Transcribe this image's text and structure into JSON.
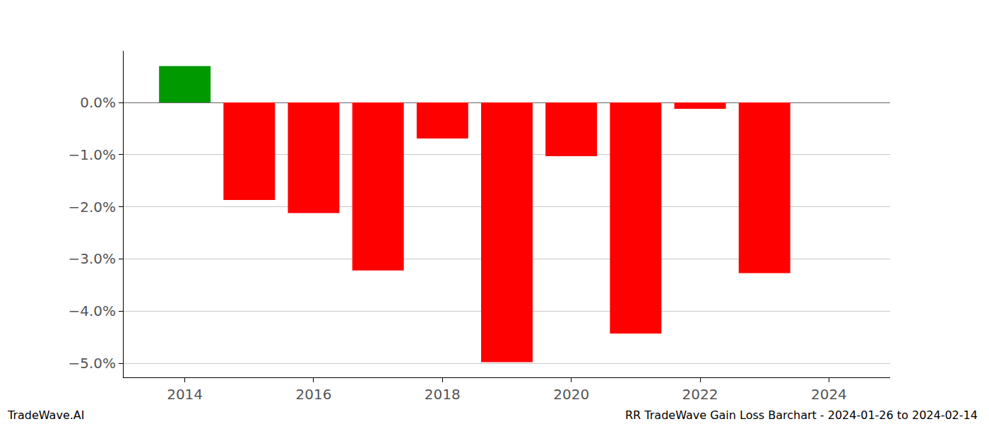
{
  "chart_data": {
    "type": "bar",
    "x": [
      2014,
      2015,
      2016,
      2017,
      2018,
      2019,
      2020,
      2021,
      2022,
      2023
    ],
    "values": [
      0.7,
      -1.87,
      -2.12,
      -3.22,
      -0.69,
      -4.98,
      -1.03,
      -4.43,
      -0.12,
      -3.27
    ],
    "colors": [
      "#009900",
      "#ff0000",
      "#ff0000",
      "#ff0000",
      "#ff0000",
      "#ff0000",
      "#ff0000",
      "#ff0000",
      "#ff0000",
      "#ff0000"
    ],
    "xlim": [
      2013.05,
      2024.95
    ],
    "xticks": [
      2014,
      2016,
      2018,
      2020,
      2022,
      2024
    ],
    "ylim": [
      -5.27,
      0.99
    ],
    "yticks": [
      {
        "value": 0,
        "label": "0.0%"
      },
      {
        "value": -1,
        "label": "−1.0%"
      },
      {
        "value": -2,
        "label": "−2.0%"
      },
      {
        "value": -3,
        "label": "−3.0%"
      },
      {
        "value": -4,
        "label": "−4.0%"
      },
      {
        "value": -5,
        "label": "−5.0%"
      }
    ],
    "grid": true,
    "annotations": [
      "TradeWave.AI",
      "RR TradeWave Gain Loss Barchart - 2024-01-26 to 2024-02-14"
    ]
  }
}
